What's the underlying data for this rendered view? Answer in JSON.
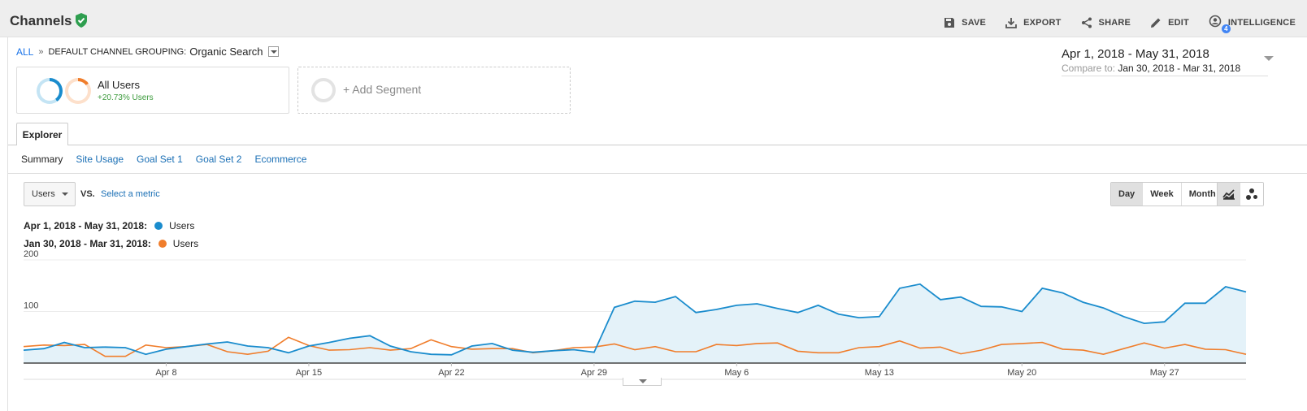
{
  "header": {
    "title": "Channels",
    "tools": [
      {
        "label": "SAVE",
        "icon": "save-icon"
      },
      {
        "label": "EXPORT",
        "icon": "download-icon"
      },
      {
        "label": "SHARE",
        "icon": "share-icon"
      },
      {
        "label": "EDIT",
        "icon": "pencil-icon"
      },
      {
        "label": "INTELLIGENCE",
        "icon": "intelligence-icon",
        "badge": "4"
      }
    ]
  },
  "breadcrumb": {
    "all": "ALL",
    "separator": "»",
    "dimension": "DEFAULT CHANNEL GROUPING:",
    "value": "Organic Search"
  },
  "segments": {
    "active": {
      "name": "All Users",
      "delta": "+20.73% Users"
    },
    "add_label": "+ Add Segment"
  },
  "date_range": {
    "main": "Apr 1, 2018 - May 31, 2018",
    "compare_label": "Compare to:",
    "compare_value": "Jan 30, 2018 - Mar 31, 2018"
  },
  "explorer": {
    "tab": "Explorer",
    "subtabs": [
      "Summary",
      "Site Usage",
      "Goal Set 1",
      "Goal Set 2",
      "Ecommerce"
    ]
  },
  "controls": {
    "metric": "Users",
    "vs": "VS.",
    "select_metric": "Select a metric",
    "granularity": [
      "Day",
      "Week",
      "Month"
    ]
  },
  "legend": [
    {
      "range": "Apr 1, 2018 - May 31, 2018:",
      "series": "Users",
      "color": "#1a8ccd"
    },
    {
      "range": "Jan 30, 2018 - Mar 31, 2018:",
      "series": "Users",
      "color": "#f07d2b"
    }
  ],
  "colors": {
    "primary": "#1a8ccd",
    "compare": "#f07d2b",
    "fill": "#e4f2f9",
    "link": "#1a6fb5"
  },
  "chart_data": {
    "type": "line",
    "ylim": [
      0,
      200
    ],
    "yticks": [
      100,
      200
    ],
    "xticks": [
      {
        "label": "Apr 8",
        "index": 7
      },
      {
        "label": "Apr 15",
        "index": 14
      },
      {
        "label": "Apr 22",
        "index": 21
      },
      {
        "label": "Apr 29",
        "index": 28
      },
      {
        "label": "May 6",
        "index": 35
      },
      {
        "label": "May 13",
        "index": 42
      },
      {
        "label": "May 20",
        "index": 49
      },
      {
        "label": "May 27",
        "index": 56
      }
    ],
    "series": [
      {
        "name": "Users",
        "area": true,
        "values": [
          25,
          28,
          40,
          30,
          31,
          30,
          17,
          27,
          32,
          37,
          41,
          33,
          30,
          20,
          33,
          40,
          48,
          53,
          33,
          22,
          17,
          16,
          33,
          38,
          25,
          21,
          24,
          26,
          21,
          108,
          120,
          118,
          129,
          98,
          104,
          112,
          115,
          106,
          98,
          112,
          95,
          88,
          90,
          145,
          153,
          123,
          128,
          110,
          109,
          100,
          145,
          136,
          118,
          107,
          90,
          77,
          80,
          116,
          116,
          148,
          138
        ]
      },
      {
        "name": "Users",
        "area": false,
        "values": [
          32,
          35,
          34,
          36,
          13,
          13,
          35,
          30,
          32,
          36,
          22,
          17,
          23,
          50,
          34,
          25,
          26,
          30,
          25,
          28,
          45,
          32,
          27,
          28,
          28,
          20,
          24,
          30,
          31,
          37,
          26,
          32,
          22,
          22,
          36,
          34,
          38,
          39,
          23,
          20,
          20,
          30,
          32,
          43,
          29,
          31,
          18,
          25,
          36,
          38,
          40,
          27,
          25,
          17,
          28,
          39,
          29,
          36,
          27,
          26,
          17
        ]
      }
    ]
  }
}
